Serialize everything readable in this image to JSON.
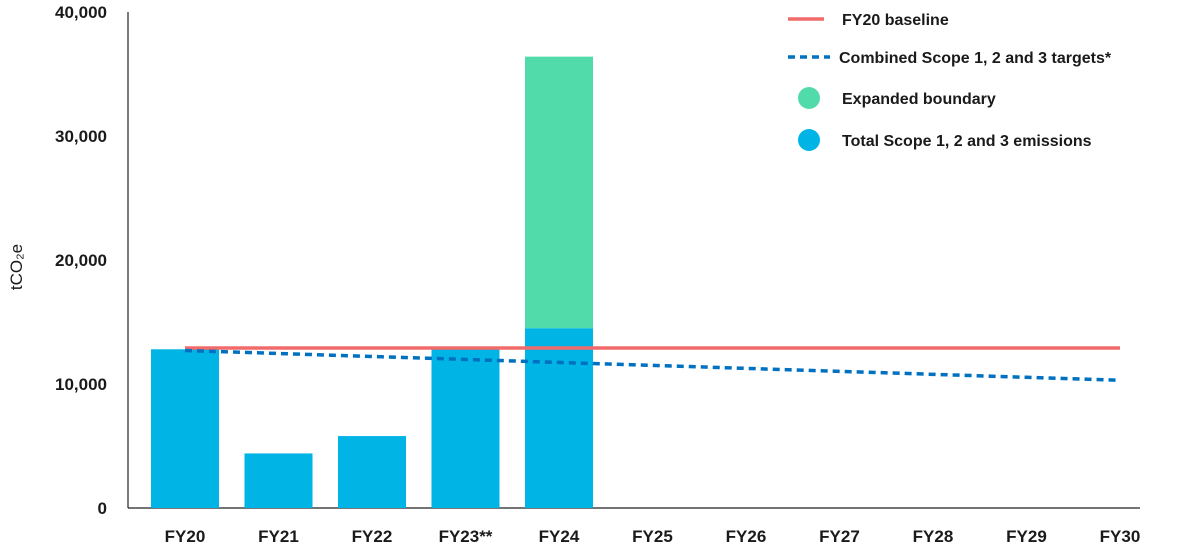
{
  "chart_data": {
    "type": "bar",
    "ylabel": "tCO₂e",
    "ylim": [
      0,
      40000
    ],
    "yticks": [
      "0",
      "10,000",
      "20,000",
      "30,000",
      "40,000"
    ],
    "ytick_values": [
      0,
      10000,
      20000,
      30000,
      40000
    ],
    "categories": [
      "FY20",
      "FY21",
      "FY22",
      "FY23**",
      "FY24",
      "FY25",
      "FY26",
      "FY27",
      "FY28",
      "FY29",
      "FY30"
    ],
    "series": [
      {
        "name": "Total Scope 1, 2 and 3 emissions",
        "kind": "bar",
        "color": "#00b5e5",
        "values": [
          12800,
          4400,
          5800,
          12800,
          14500,
          null,
          null,
          null,
          null,
          null,
          null
        ]
      },
      {
        "name": "Expanded boundary",
        "kind": "bar-stacked",
        "color": "#52dbaa",
        "values": [
          null,
          null,
          null,
          null,
          21900,
          null,
          null,
          null,
          null,
          null,
          null
        ]
      },
      {
        "name": "FY20 baseline",
        "kind": "line",
        "color": "#f26b6b",
        "values": [
          12900,
          12900,
          12900,
          12900,
          12900,
          12900,
          12900,
          12900,
          12900,
          12900,
          12900
        ]
      },
      {
        "name": "Combined Scope 1, 2 and 3 targets*",
        "kind": "dashed-line",
        "color": "#0070c0",
        "values": [
          12700,
          12460,
          12220,
          11980,
          11740,
          11500,
          11260,
          11020,
          10780,
          10540,
          10300
        ]
      }
    ],
    "legend_position": "top-right",
    "grid": false
  },
  "legend": {
    "baseline": "FY20 baseline",
    "targets": "Combined Scope 1, 2 and 3 targets*",
    "expanded": "Expanded boundary",
    "total": "Total Scope 1, 2 and 3 emissions"
  }
}
